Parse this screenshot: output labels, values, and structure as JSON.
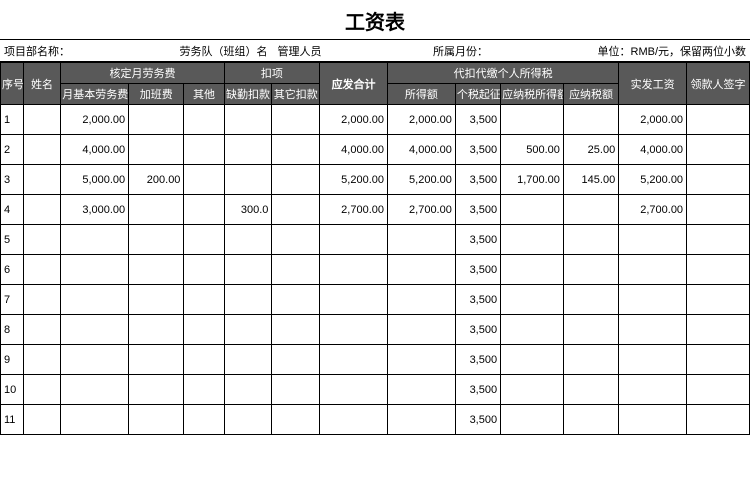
{
  "title": "工资表",
  "info": {
    "project_label": "项目部名称：",
    "project_value": "",
    "team_label": "劳务队（班组）名",
    "team_value": "管理人员",
    "month_label": "所属月份：",
    "month_value": "",
    "unit_label": "单位：RMB/元，保留两位小数"
  },
  "headers": {
    "idx": "序号",
    "name": "姓名",
    "labor_group": "核定月劳务费",
    "base": "月基本劳务费",
    "overtime": "加班费",
    "other": "其他",
    "deduct_group": "扣项",
    "absence": "缺勤扣款",
    "other_deduct": "其它扣款",
    "due_total": "应发合计",
    "tax_group": "代扣代缴个人所得税",
    "income": "所得额",
    "threshold": "个税起征点",
    "taxable": "应纳税所得额",
    "tax": "应纳税额",
    "net": "实发工资",
    "sign": "领款人签字"
  },
  "rows": [
    {
      "idx": "1",
      "name": "",
      "base": "2,000.00",
      "ot": "",
      "other": "",
      "abs": "",
      "oded": "",
      "due": "2,000.00",
      "inc": "2,000.00",
      "thr": "3,500",
      "txa": "",
      "tax": "",
      "net": "2,000.00",
      "sign": ""
    },
    {
      "idx": "2",
      "name": "",
      "base": "4,000.00",
      "ot": "",
      "other": "",
      "abs": "",
      "oded": "",
      "due": "4,000.00",
      "inc": "4,000.00",
      "thr": "3,500",
      "txa": "500.00",
      "tax": "25.00",
      "net": "4,000.00",
      "sign": ""
    },
    {
      "idx": "3",
      "name": "",
      "base": "5,000.00",
      "ot": "200.00",
      "other": "",
      "abs": "",
      "oded": "",
      "due": "5,200.00",
      "inc": "5,200.00",
      "thr": "3,500",
      "txa": "1,700.00",
      "tax": "145.00",
      "net": "5,200.00",
      "sign": ""
    },
    {
      "idx": "4",
      "name": "",
      "base": "3,000.00",
      "ot": "",
      "other": "",
      "abs": "300.0",
      "oded": "",
      "due": "2,700.00",
      "inc": "2,700.00",
      "thr": "3,500",
      "txa": "",
      "tax": "",
      "net": "2,700.00",
      "sign": ""
    },
    {
      "idx": "5",
      "name": "",
      "base": "",
      "ot": "",
      "other": "",
      "abs": "",
      "oded": "",
      "due": "",
      "inc": "",
      "thr": "3,500",
      "txa": "",
      "tax": "",
      "net": "",
      "sign": ""
    },
    {
      "idx": "6",
      "name": "",
      "base": "",
      "ot": "",
      "other": "",
      "abs": "",
      "oded": "",
      "due": "",
      "inc": "",
      "thr": "3,500",
      "txa": "",
      "tax": "",
      "net": "",
      "sign": ""
    },
    {
      "idx": "7",
      "name": "",
      "base": "",
      "ot": "",
      "other": "",
      "abs": "",
      "oded": "",
      "due": "",
      "inc": "",
      "thr": "3,500",
      "txa": "",
      "tax": "",
      "net": "",
      "sign": ""
    },
    {
      "idx": "8",
      "name": "",
      "base": "",
      "ot": "",
      "other": "",
      "abs": "",
      "oded": "",
      "due": "",
      "inc": "",
      "thr": "3,500",
      "txa": "",
      "tax": "",
      "net": "",
      "sign": ""
    },
    {
      "idx": "9",
      "name": "",
      "base": "",
      "ot": "",
      "other": "",
      "abs": "",
      "oded": "",
      "due": "",
      "inc": "",
      "thr": "3,500",
      "txa": "",
      "tax": "",
      "net": "",
      "sign": ""
    },
    {
      "idx": "10",
      "name": "",
      "base": "",
      "ot": "",
      "other": "",
      "abs": "",
      "oded": "",
      "due": "",
      "inc": "",
      "thr": "3,500",
      "txa": "",
      "tax": "",
      "net": "",
      "sign": ""
    },
    {
      "idx": "11",
      "name": "",
      "base": "",
      "ot": "",
      "other": "",
      "abs": "",
      "oded": "",
      "due": "",
      "inc": "",
      "thr": "3,500",
      "txa": "",
      "tax": "",
      "net": "",
      "sign": ""
    }
  ],
  "style": {
    "header_bg": "#595959",
    "header_fg": "#ffffff",
    "border_color": "#000000",
    "title_fontsize": 20,
    "body_fontsize": 11
  }
}
